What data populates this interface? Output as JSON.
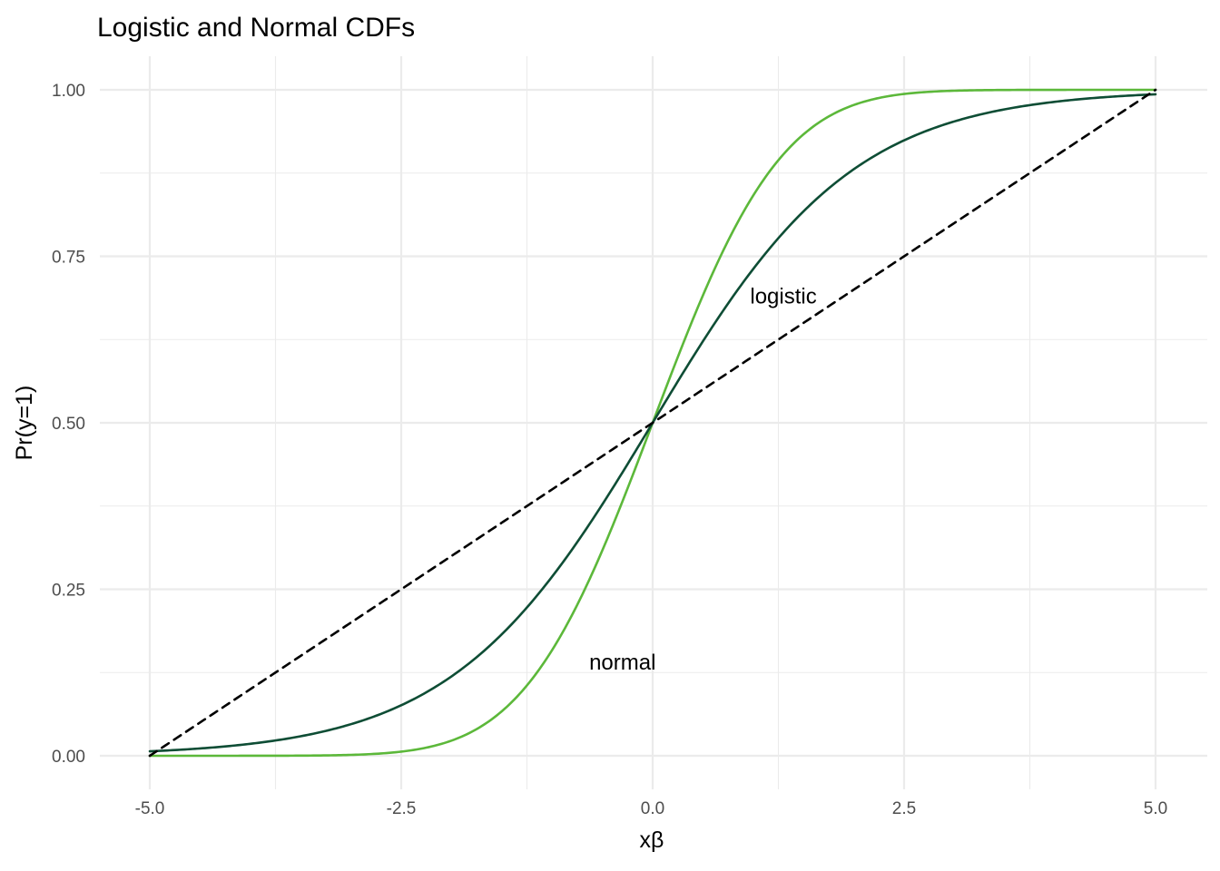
{
  "chart_data": {
    "type": "line",
    "title": "Logistic and Normal CDFs",
    "xlabel": "xβ",
    "ylabel": "Pr(y=1)",
    "xlim": [
      -5,
      5
    ],
    "ylim": [
      0,
      1
    ],
    "x_ticks": [
      -5.0,
      -2.5,
      0.0,
      2.5,
      5.0
    ],
    "x_tick_labels": [
      "-5.0",
      "-2.5",
      "0.0",
      "2.5",
      "5.0"
    ],
    "y_ticks": [
      0.0,
      0.25,
      0.5,
      0.75,
      1.0
    ],
    "y_tick_labels": [
      "0.00",
      "0.25",
      "0.50",
      "0.75",
      "1.00"
    ],
    "grid": true,
    "legend": "none",
    "x": [
      -5,
      -4.5,
      -4,
      -3.5,
      -3,
      -2.5,
      -2,
      -1.5,
      -1,
      -0.5,
      0,
      0.5,
      1,
      1.5,
      2,
      2.5,
      3,
      3.5,
      4,
      4.5,
      5
    ],
    "series": [
      {
        "id": "normal",
        "color": "#5cb83a",
        "dash": "solid",
        "values": [
          3e-07,
          3.4e-06,
          3.17e-05,
          0.000233,
          0.00135,
          0.00621,
          0.02275,
          0.06681,
          0.15866,
          0.30854,
          0.5,
          0.69146,
          0.84134,
          0.93319,
          0.97725,
          0.99379,
          0.99865,
          0.99977,
          0.99997,
          0.999997,
          0.9999997
        ]
      },
      {
        "id": "logistic",
        "color": "#0e4d35",
        "dash": "solid",
        "values": [
          0.00669,
          0.01099,
          0.01799,
          0.02931,
          0.04743,
          0.07586,
          0.1192,
          0.18243,
          0.26894,
          0.37754,
          0.5,
          0.62246,
          0.73106,
          0.81757,
          0.8808,
          0.92414,
          0.95257,
          0.97069,
          0.98201,
          0.98901,
          0.99331
        ]
      },
      {
        "id": "linear",
        "color": "#000000",
        "dash": "dashed",
        "values": [
          0,
          0.05,
          0.1,
          0.15,
          0.2,
          0.25,
          0.3,
          0.35,
          0.4,
          0.45,
          0.5,
          0.55,
          0.6,
          0.65,
          0.7,
          0.75,
          0.8,
          0.85,
          0.9,
          0.95,
          1.0
        ]
      }
    ],
    "annotations": [
      {
        "text": "logistic",
        "x": 1.3,
        "y": 0.69
      },
      {
        "text": "normal",
        "x": -0.3,
        "y": 0.14
      }
    ]
  }
}
